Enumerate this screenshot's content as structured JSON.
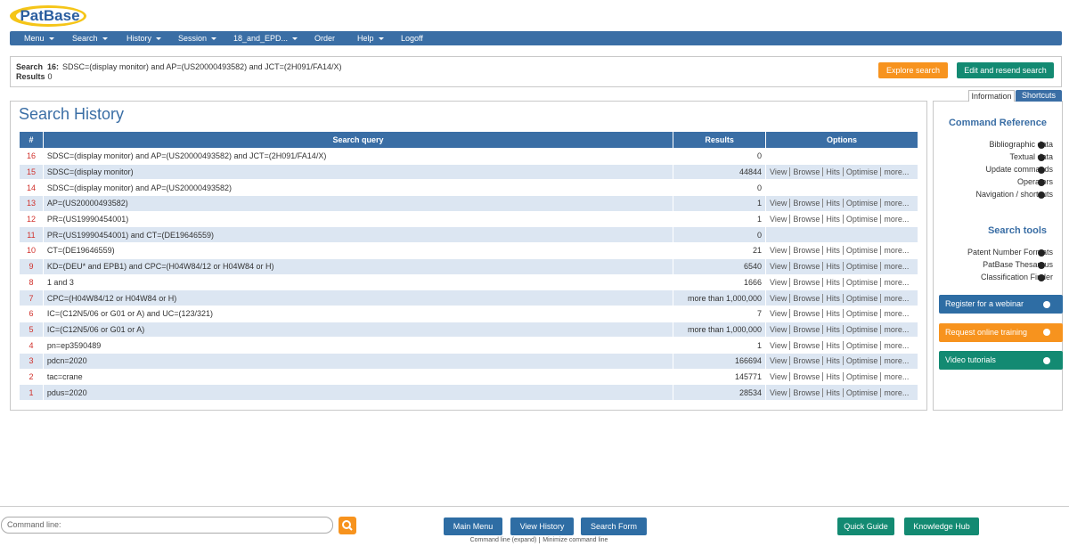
{
  "logo": "PatBase",
  "nav": [
    {
      "label": "Menu",
      "dropdown": true
    },
    {
      "label": "Search",
      "dropdown": true
    },
    {
      "label": "History",
      "dropdown": true
    },
    {
      "label": "Session",
      "dropdown": true
    },
    {
      "label": "18_and_EPD...",
      "dropdown": true
    },
    {
      "label": "Order",
      "dropdown": false
    },
    {
      "label": "Help",
      "dropdown": true
    },
    {
      "label": "Logoff",
      "dropdown": false
    }
  ],
  "current_search": {
    "search_label": "Search",
    "search_number": "16:",
    "query": "SDSC=(display monitor) and AP=(US20000493582) and JCT=(2H091/FA14/X)",
    "results_label": "Results",
    "results": 0,
    "buttons": [
      "Explore search",
      "Edit and resend search"
    ]
  },
  "history": {
    "title": "Search History",
    "columns": [
      "#",
      "Search query",
      "Results",
      "Options"
    ],
    "rows": [
      {
        "number": 16,
        "query": "SDSC=(display monitor) and AP=(US20000493582) and JCT=(2H091/FA14/X)",
        "results": 0
      },
      {
        "number": 15,
        "query": "SDSC=(display monitor)",
        "results": 44844,
        "options": [
          "View",
          "Browse",
          "Hits",
          "Optimise",
          "more..."
        ]
      },
      {
        "number": 14,
        "query": "SDSC=(display monitor) and AP=(US20000493582)",
        "results": 0
      },
      {
        "number": 13,
        "query": "AP=(US20000493582)",
        "results": 1,
        "options": [
          "View",
          "Browse",
          "Hits",
          "Optimise",
          "more..."
        ]
      },
      {
        "number": 12,
        "query": "PR=(US19990454001)",
        "results": 1,
        "options": [
          "View",
          "Browse",
          "Hits",
          "Optimise",
          "more..."
        ]
      },
      {
        "number": 11,
        "query": "PR=(US19990454001) and CT=(DE19646559)",
        "results": 0
      },
      {
        "number": 10,
        "query": "CT=(DE19646559)",
        "results": 21,
        "options": [
          "View",
          "Browse",
          "Hits",
          "Optimise",
          "more..."
        ]
      },
      {
        "number": 9,
        "query": "KD=(DEU* and EPB1) and CPC=(H04W84/12 or H04W84 or H)",
        "results": 6540,
        "options": [
          "View",
          "Browse",
          "Hits",
          "Optimise",
          "more..."
        ]
      },
      {
        "number": 8,
        "query": "1 and 3",
        "results": 1666,
        "options": [
          "View",
          "Browse",
          "Hits",
          "Optimise",
          "more..."
        ]
      },
      {
        "number": 7,
        "query": "CPC=(H04W84/12 or H04W84 or H)",
        "results": "more than 1,000,000",
        "options": [
          "View",
          "Browse",
          "Hits",
          "Optimise",
          "more..."
        ]
      },
      {
        "number": 6,
        "query": "IC=(C12N5/06 or G01 or A) and UC=(123/321)",
        "results": 7,
        "options": [
          "View",
          "Browse",
          "Hits",
          "Optimise",
          "more..."
        ]
      },
      {
        "number": 5,
        "query": "IC=(C12N5/06 or G01 or A)",
        "results": "more than 1,000,000",
        "options": [
          "View",
          "Browse",
          "Hits",
          "Optimise",
          "more..."
        ]
      },
      {
        "number": 4,
        "query": "pn=ep3590489",
        "results": 1,
        "options": [
          "View",
          "Browse",
          "Hits",
          "Optimise",
          "more..."
        ]
      },
      {
        "number": 3,
        "query": "pdcn=2020",
        "results": 166694,
        "options": [
          "View",
          "Browse",
          "Hits",
          "Optimise",
          "more..."
        ]
      },
      {
        "number": 2,
        "query": "tac=crane",
        "results": 145771,
        "options": [
          "View",
          "Browse",
          "Hits",
          "Optimise",
          "more..."
        ]
      },
      {
        "number": 1,
        "query": "pdus=2020",
        "results": 28534,
        "options": [
          "View",
          "Browse",
          "Hits",
          "Optimise",
          "more..."
        ]
      }
    ]
  },
  "sidebar": {
    "tabs": [
      "Information",
      "Shortcuts"
    ],
    "sections": [
      {
        "title": "Command Reference",
        "links": [
          "Bibliographic data",
          "Textual data",
          "Update commands",
          "Operators",
          "Navigation / shortcuts"
        ]
      },
      {
        "title": "Search tools",
        "links": [
          "Patent Number Formats",
          "PatBase Thesaurus",
          "Classification Finder"
        ]
      }
    ],
    "buttons": [
      "Register for a webinar",
      "Request online training",
      "Video tutorials"
    ]
  },
  "footer": {
    "command_placeholder": "Command line:",
    "buttons": [
      "Main Menu",
      "View History",
      "Search Form"
    ],
    "links": [
      "Command line (expand)",
      "Minimize command line"
    ],
    "right_buttons": [
      "Quick Guide",
      "Knowledge Hub"
    ]
  }
}
